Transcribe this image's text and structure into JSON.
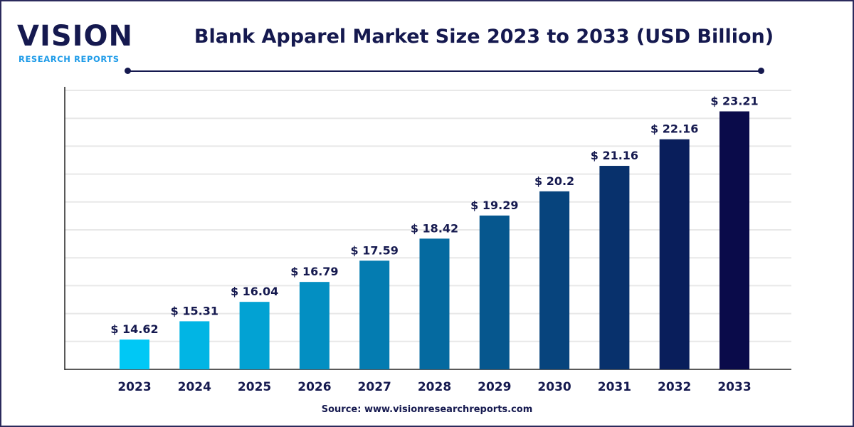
{
  "logo": {
    "main": "VISION",
    "sub": "RESEARCH REPORTS"
  },
  "header": {
    "title": "Blank Apparel Market Size 2023 to 2033 (USD Billion)"
  },
  "footer": {
    "source": "Source: www.visionresearchreports.com"
  },
  "colors": {
    "text": "#15194f",
    "bar_start": "#00c8f5",
    "bar_end": "#0a0b4a",
    "grid": "#e8e8e8"
  },
  "chart_data": {
    "type": "bar",
    "title": "Blank Apparel Market Size 2023 to 2033 (USD Billion)",
    "xlabel": "",
    "ylabel": "",
    "categories": [
      "2023",
      "2024",
      "2025",
      "2026",
      "2027",
      "2028",
      "2029",
      "2030",
      "2031",
      "2032",
      "2033"
    ],
    "values": [
      14.62,
      15.31,
      16.04,
      16.79,
      17.59,
      18.42,
      19.29,
      20.2,
      21.16,
      22.16,
      23.21
    ],
    "data_labels": [
      "$ 14.62",
      "$ 15.31",
      "$ 16.04",
      "$ 16.79",
      "$ 17.59",
      "$ 18.42",
      "$ 19.29",
      "$ 20.2",
      "$ 21.16",
      "$ 22.16",
      "$ 23.21"
    ],
    "ylim": [
      13.5,
      24
    ],
    "grid": true,
    "legend": "none"
  }
}
